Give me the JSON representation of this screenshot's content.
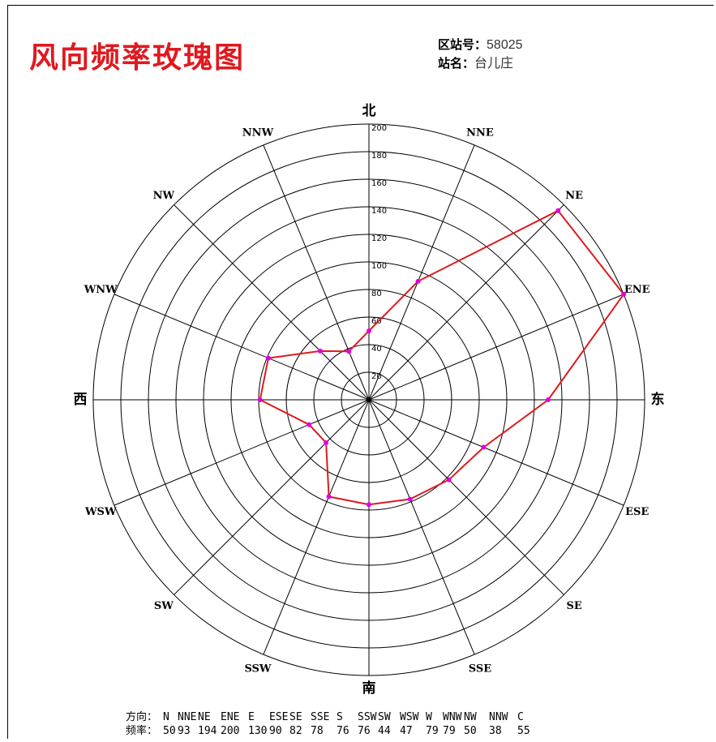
{
  "page": {
    "title": "风向频率玫瑰图"
  },
  "station": {
    "id_label": "区站号：",
    "id_value": "58025",
    "name_label": "站名：",
    "name_value": "台儿庄"
  },
  "compass_labels": {
    "north": "北",
    "east": "东",
    "south": "南",
    "west": "西"
  },
  "footer": {
    "direction_label": "方向：",
    "frequency_label": "频率：",
    "directions": [
      "N",
      "NNE",
      "NE",
      "ENE",
      "E",
      "ESE",
      "SE",
      "SSE",
      "S",
      "SSW",
      "SW",
      "WSW",
      "W",
      "WNW",
      "NW",
      "NNW",
      "C"
    ],
    "frequencies": [
      "50",
      "93",
      "194",
      "200",
      "130",
      "90",
      "82",
      "78",
      "76",
      "76",
      "44",
      "47",
      "79",
      "79",
      "50",
      "38",
      "55"
    ]
  },
  "chart_data": {
    "type": "radar",
    "directions": [
      "N",
      "NNE",
      "NE",
      "ENE",
      "E",
      "ESE",
      "SE",
      "SSE",
      "S",
      "SSW",
      "SW",
      "WSW",
      "W",
      "WNW",
      "NW",
      "NNW"
    ],
    "axis_labels": [
      "北",
      "NNE",
      "NE",
      "ENE",
      "东",
      "ESE",
      "SE",
      "SSE",
      "南",
      "SSW",
      "SW",
      "WSW",
      "西",
      "WNW",
      "NW",
      "NNW"
    ],
    "values": [
      50,
      93,
      194,
      200,
      130,
      90,
      82,
      78,
      76,
      76,
      44,
      47,
      79,
      79,
      50,
      38
    ],
    "calm": 55,
    "radial_range": [
      0,
      200
    ],
    "radial_ticks": [
      20,
      40,
      60,
      80,
      100,
      120,
      140,
      160,
      180,
      200
    ],
    "grid": true,
    "line_color": "#e0191f",
    "marker_color": "#e000e0"
  }
}
